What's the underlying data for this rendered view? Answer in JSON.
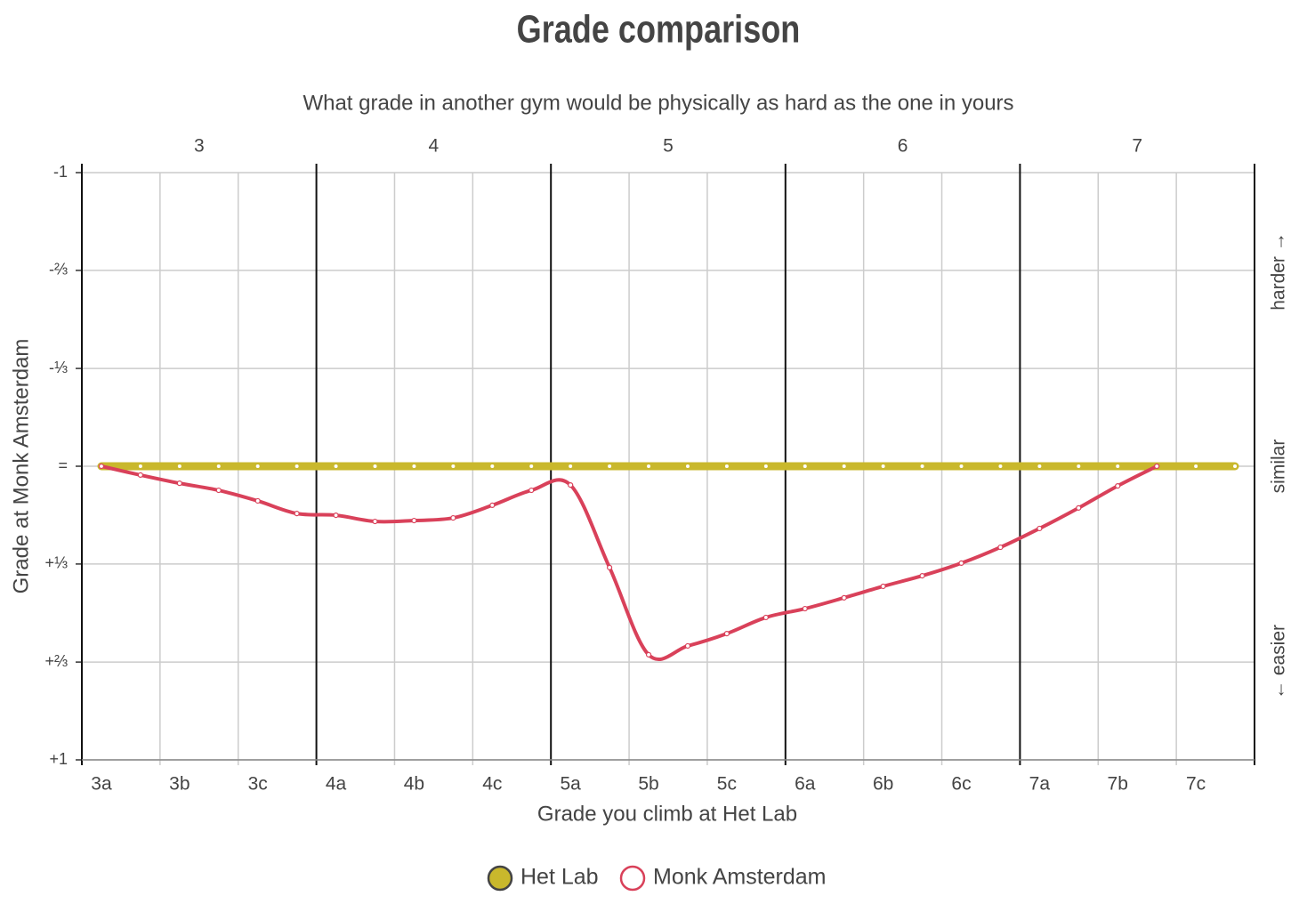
{
  "chart_data": {
    "type": "line",
    "title": "Grade comparison",
    "subtitle": "What grade in another gym would be physically as hard as the one in yours",
    "x_label": "Grade you climb at Het Lab",
    "y_label": "Grade at Monk Amsterdam",
    "annotations": [
      "harder →",
      "similar",
      "← easier"
    ],
    "xlim": [
      -0.25,
      14.75
    ],
    "xticks": [
      {
        "value": 0,
        "label": "3a"
      },
      {
        "value": 1,
        "label": "3b"
      },
      {
        "value": 2,
        "label": "3c"
      },
      {
        "value": 3,
        "label": "4a"
      },
      {
        "value": 4,
        "label": "4b"
      },
      {
        "value": 5,
        "label": "4c"
      },
      {
        "value": 6,
        "label": "5a"
      },
      {
        "value": 7,
        "label": "5b"
      },
      {
        "value": 8,
        "label": "5c"
      },
      {
        "value": 9,
        "label": "6a"
      },
      {
        "value": 10,
        "label": "6b"
      },
      {
        "value": 11,
        "label": "6c"
      },
      {
        "value": 12,
        "label": "7a"
      },
      {
        "value": 13,
        "label": "7b"
      },
      {
        "value": 14,
        "label": "7c"
      }
    ],
    "x2ticks": [
      {
        "value": 1.25,
        "label": "3"
      },
      {
        "value": 4.25,
        "label": "4"
      },
      {
        "value": 7.25,
        "label": "5"
      },
      {
        "value": 10.25,
        "label": "6"
      },
      {
        "value": 13.25,
        "label": "7"
      }
    ],
    "x_gridlines": [
      0.75,
      1.75,
      3.75,
      4.75,
      6.75,
      7.75,
      9.75,
      10.75,
      12.75,
      13.75
    ],
    "x_major_gridlines": [
      -0.25,
      2.75,
      5.75,
      8.75,
      11.75,
      14.75
    ],
    "ylim": [
      -1,
      1
    ],
    "y_inverted": true,
    "yticks": [
      -1,
      {
        "value": -0.667,
        "label": "-⅔"
      },
      {
        "value": -0.333,
        "label": "-⅓"
      },
      {
        "value": 0,
        "label": "="
      },
      {
        "value": 0.333,
        "label": "+⅓"
      },
      {
        "value": 0.667,
        "label": "+⅔"
      },
      {
        "value": 1,
        "label": "+1"
      }
    ],
    "grid": true,
    "legend": "bottom",
    "series": [
      {
        "name": "Het Lab",
        "color": "#c9b82c",
        "x": [
          0,
          0.5,
          1,
          1.5,
          2,
          2.5,
          3,
          3.5,
          4,
          4.5,
          5,
          5.5,
          6,
          6.5,
          7,
          7.5,
          8,
          8.5,
          9,
          9.5,
          10,
          10.5,
          11,
          11.5,
          12,
          12.5,
          13,
          13.5,
          14,
          14.5
        ],
        "values": [
          0,
          0,
          0,
          0,
          0,
          0,
          0,
          0,
          0,
          0,
          0,
          0,
          0,
          0,
          0,
          0,
          0,
          0,
          0,
          0,
          0,
          0,
          0,
          0,
          0,
          0,
          0,
          0,
          0,
          0
        ]
      },
      {
        "name": "Monk Amsterdam",
        "color": "#d9415a",
        "x": [
          0,
          0.5,
          1,
          1.5,
          2,
          2.5,
          3,
          3.5,
          4,
          4.5,
          5,
          5.5,
          6,
          6.5,
          7,
          7.5,
          8,
          8.5,
          9,
          9.5,
          10,
          10.5,
          11,
          11.5,
          12,
          12.5,
          13,
          13.5
        ],
        "values": [
          0,
          0.03,
          0.058,
          0.082,
          0.118,
          0.161,
          0.167,
          0.188,
          0.185,
          0.176,
          0.133,
          0.082,
          0.064,
          0.345,
          0.642,
          0.612,
          0.57,
          0.515,
          0.485,
          0.448,
          0.409,
          0.373,
          0.33,
          0.276,
          0.212,
          0.142,
          0.067,
          0
        ]
      }
    ]
  }
}
